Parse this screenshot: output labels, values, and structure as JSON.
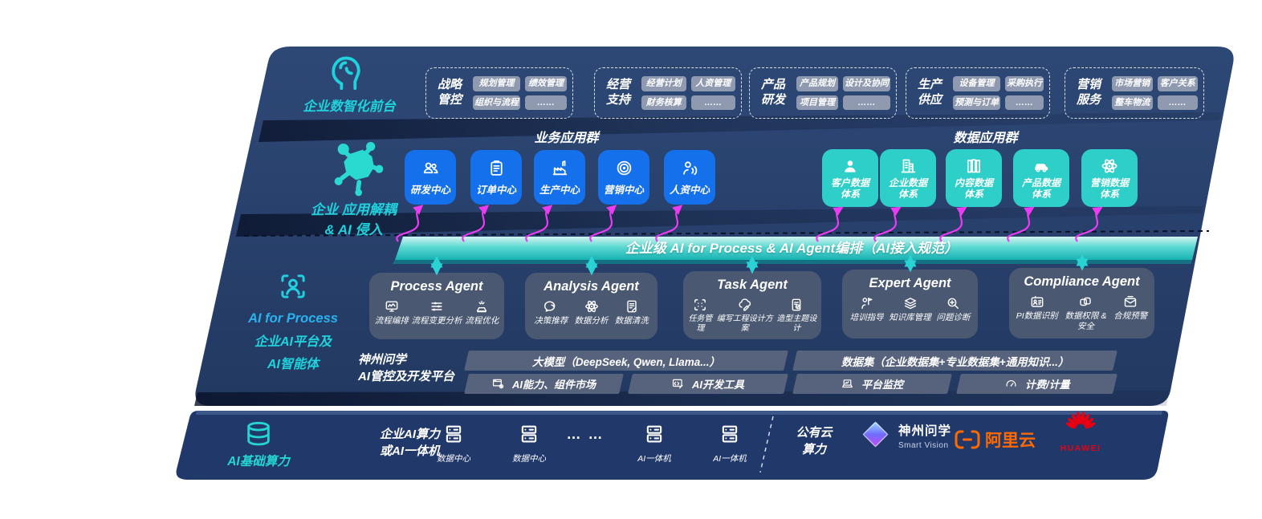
{
  "colors": {
    "panel_navy": "#2b4572",
    "bottom_navy": "#21386b",
    "accent_teal": "#1fd2dc",
    "box_blue": "#1470eb",
    "box_teal": "#2ecfc8",
    "band_teal": "#2cc7c3",
    "pill_gray": "#8f9ab0",
    "agent_gray": "#4c5971",
    "arrow_pink": "#ec3bf2",
    "alicloud_orange": "#ff6a00",
    "huawei_red": "#e60012"
  },
  "front": {
    "label": "企业数智化前台",
    "icon": "brain-head-icon",
    "groups": [
      {
        "title1": "战略",
        "title2": "管控",
        "items": [
          "规划管理",
          "绩效管理",
          "组织与流程",
          "……"
        ]
      },
      {
        "title1": "经营",
        "title2": "支持",
        "items": [
          "经营计划",
          "人资管理",
          "财务核算",
          "……"
        ]
      },
      {
        "title1": "产品",
        "title2": "研发",
        "items": [
          "产品规划",
          "设计及协同",
          "项目管理",
          "……"
        ]
      },
      {
        "title1": "生产",
        "title2": "供应",
        "items": [
          "设备管理",
          "采购执行",
          "预测与订单",
          "……"
        ]
      },
      {
        "title1": "营销",
        "title2": "服务",
        "items": [
          "市场营销",
          "客户关系",
          "整车物流",
          "……"
        ]
      }
    ]
  },
  "decouple": {
    "label1": "企业 应用解耦",
    "label2": "& AI 侵入",
    "icon": "molecule-icon",
    "biz_heading": "业务应用群",
    "data_heading": "数据应用群",
    "biz_apps": [
      {
        "label": "研发中心",
        "icon": "team-icon"
      },
      {
        "label": "订单中心",
        "icon": "clipboard-icon"
      },
      {
        "label": "生产中心",
        "icon": "factory-icon"
      },
      {
        "label": "营销中心",
        "icon": "target-icon"
      },
      {
        "label": "人资中心",
        "icon": "person-wave-icon"
      }
    ],
    "data_apps": [
      {
        "line1": "客户数据",
        "line2": "体系",
        "icon": "user-icon"
      },
      {
        "line1": "企业数据",
        "line2": "体系",
        "icon": "building-icon"
      },
      {
        "line1": "内容数据",
        "line2": "体系",
        "icon": "books-icon"
      },
      {
        "line1": "产品数据",
        "line2": "体系",
        "icon": "car-icon"
      },
      {
        "line1": "营销数据",
        "line2": "体系",
        "icon": "atom-icon"
      }
    ]
  },
  "band": {
    "title": "企业级 AI for Process & AI Agent编排（AI接入规范）"
  },
  "process": {
    "label1": "AI for Process",
    "label2": "企业AI平台及",
    "label3": "AI智能体",
    "icon": "person-frame-icon",
    "agents": [
      {
        "title": "Process Agent",
        "items": [
          {
            "label": "流程编排",
            "icon": "monitor-wave-icon"
          },
          {
            "label": "流程变更分析",
            "icon": "sliders-icon"
          },
          {
            "label": "流程优化",
            "icon": "spark-icon"
          }
        ]
      },
      {
        "title": "Analysis Agent",
        "items": [
          {
            "label": "决策推荐",
            "icon": "chat-head-icon"
          },
          {
            "label": "数据分析",
            "icon": "atom-icon"
          },
          {
            "label": "数据清洗",
            "icon": "doc-clean-icon"
          }
        ]
      },
      {
        "title": "Task Agent",
        "items": [
          {
            "label": "任务管理",
            "icon": "scan-grid-icon"
          },
          {
            "label": "编写工程设计方案",
            "icon": "cloud-pen-icon"
          },
          {
            "label": "造型主题设计",
            "icon": "tablet-check-icon"
          }
        ]
      },
      {
        "title": "Expert Agent",
        "items": [
          {
            "label": "培训指导",
            "icon": "trainer-icon"
          },
          {
            "label": "知识库管理",
            "icon": "layers-icon"
          },
          {
            "label": "问题诊断",
            "icon": "diagnose-icon"
          }
        ]
      },
      {
        "title": "Compliance Agent",
        "items": [
          {
            "label": "PI数据识别",
            "icon": "id-card-icon"
          },
          {
            "label": "数据权限 & 安全",
            "icon": "permission-icon"
          },
          {
            "label": "合规预警",
            "icon": "mail-alert-icon"
          }
        ]
      }
    ]
  },
  "platform": {
    "label1": "神州问学",
    "label2": "AI管控及开发平台",
    "model_bar": "大模型（DeepSeek, Qwen, Llama...）",
    "capability": "AI能力、组件市场",
    "capability_icon": "window-gear-icon",
    "devtools": "AI开发工具",
    "devtools_icon": "code-window-icon",
    "dataset_bar": "数据集（企业数据集+专业数据集+通用知识...）",
    "monitor": "平台监控",
    "monitor_icon": "laptop-chart-icon",
    "billing": "计费/计量",
    "billing_icon": "gauge-icon"
  },
  "infra": {
    "label": "AI基础算力",
    "icon": "database-icon",
    "compute1": "企业AI算力",
    "compute2": "或AI一体机",
    "nodes": [
      {
        "label": "数据中心",
        "icon": "server-icon"
      },
      {
        "label": "数据中心",
        "icon": "server-icon"
      }
    ],
    "dots": "… …",
    "nodes2": [
      {
        "label": "AI一体机",
        "icon": "server-icon"
      },
      {
        "label": "AI一体机",
        "icon": "server-icon"
      }
    ],
    "cloud1": "公有云",
    "cloud2": "算力",
    "logos": {
      "sv_cn": "神州问学",
      "sv_en": "Smart Vision",
      "ali": "阿里云",
      "huawei": "HUAWEI"
    }
  }
}
